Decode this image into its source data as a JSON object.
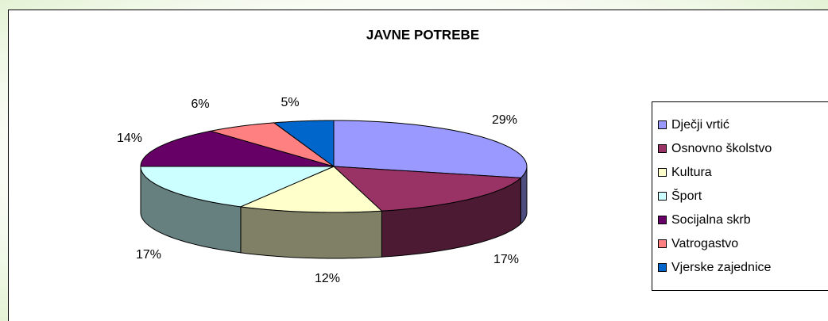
{
  "chart_data": {
    "type": "pie3d",
    "title": "JAVNE POTREBE",
    "categories": [
      "Dječji vrtić",
      "Osnovno školstvo",
      "Kultura",
      "Šport",
      "Socijalna skrb",
      "Vatrogastvo",
      "Vjerske zajednice"
    ],
    "values": [
      29,
      17,
      12,
      17,
      14,
      6,
      5
    ],
    "value_labels": [
      "29%",
      "17%",
      "12%",
      "17%",
      "14%",
      "6%",
      "5%"
    ],
    "colors": [
      "#9999ff",
      "#993366",
      "#ffffcc",
      "#ccffff",
      "#660066",
      "#ff8080",
      "#0066cc"
    ],
    "legend": "right"
  }
}
